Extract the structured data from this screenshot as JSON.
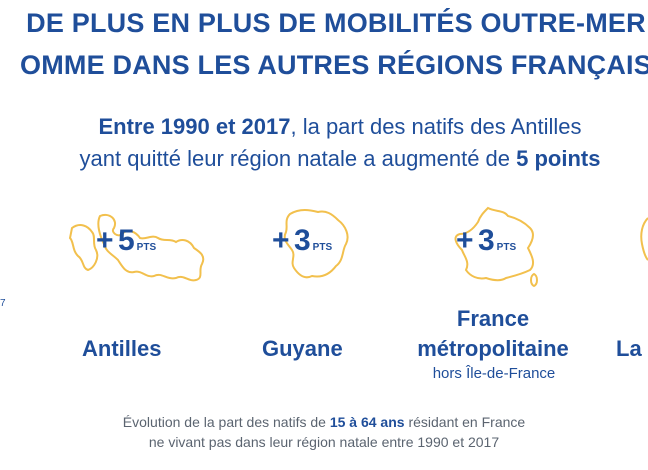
{
  "headline": {
    "line1": "DE PLUS EN PLUS DE MOBILITÉS OUTRE-MER",
    "line2": "OMME DANS LES AUTRES RÉGIONS FRANÇAIS"
  },
  "intro": {
    "line1_bold": "Entre 1990 et 2017",
    "line1_rest": ", la part des natifs des Antilles",
    "line2_start": "yant quitté leur région natale a augmenté de ",
    "line2_bold": "5 points"
  },
  "regions": [
    {
      "name": "Antilles",
      "plus": "+",
      "value": "5",
      "unit": "PTS",
      "icon": "antilles-map-icon"
    },
    {
      "name": "Guyane",
      "plus": "+",
      "value": "3",
      "unit": "PTS",
      "icon": "guyane-map-icon"
    },
    {
      "name": "France",
      "name2": "métropolitaine",
      "subtitle": "hors Île-de-France",
      "plus": "+",
      "value": "3",
      "unit": "PTS",
      "icon": "france-map-icon"
    },
    {
      "name": "La",
      "icon": "reunion-map-icon"
    }
  ],
  "left_stub": "7",
  "footnote": {
    "line1_start": "Évolution de la part des natifs de ",
    "line1_bold": "15 à 64 ans",
    "line1_end": " résidant en France",
    "line2": "ne vivant pas dans leur région natale entre 1990 et 2017"
  },
  "colors": {
    "blue": "#1f4e9a",
    "gold": "#f2c04d",
    "grey": "#5b6470"
  }
}
